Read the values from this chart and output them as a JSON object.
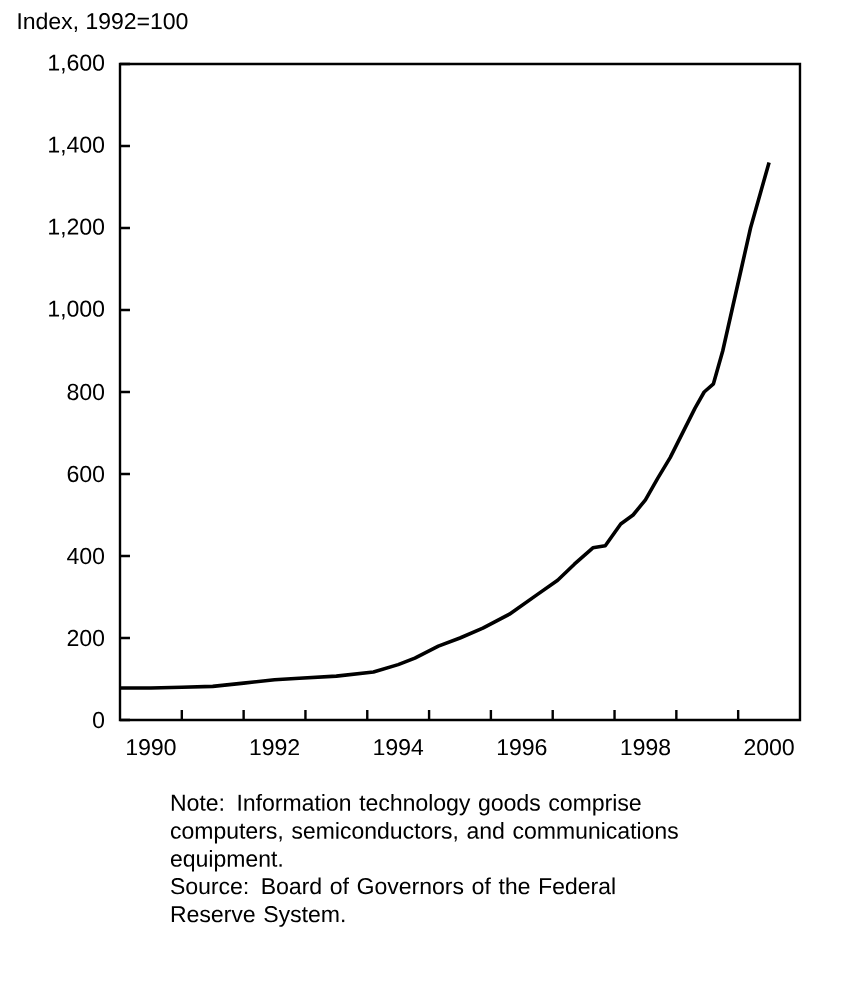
{
  "chart_data": {
    "type": "line",
    "ylabel": "Index, 1992=100",
    "x": [
      1990.0,
      1990.5,
      1991.0,
      1991.5,
      1992.0,
      1992.5,
      1992.9,
      1993.5,
      1994.1,
      1994.5,
      1994.77,
      1995.15,
      1995.5,
      1995.87,
      1996.3,
      1996.76,
      1997.08,
      1997.35,
      1997.65,
      1997.85,
      1998.1,
      1998.3,
      1998.5,
      1998.7,
      1998.9,
      1999.1,
      1999.3,
      1999.45,
      1999.6,
      1999.75,
      1999.9,
      2000.05,
      2000.2,
      2000.35,
      2000.5
    ],
    "series": [
      {
        "color": "#000000",
        "values": [
          78,
          78,
          80,
          82,
          90,
          98,
          102,
          107,
          117,
          135,
          151,
          180,
          200,
          224,
          258,
          307,
          341,
          380,
          420,
          425,
          478,
          500,
          537,
          590,
          640,
          700,
          760,
          800,
          820,
          900,
          1000,
          1100,
          1200,
          1280,
          1360
        ]
      }
    ],
    "xlim": [
      1990,
      2001
    ],
    "xticks": [
      {
        "value": 1990.5,
        "label": "1990"
      },
      {
        "value": 1992.5,
        "label": "1992"
      },
      {
        "value": 1994.5,
        "label": "1994"
      },
      {
        "value": 1996.5,
        "label": "1996"
      },
      {
        "value": 1998.5,
        "label": "1998"
      },
      {
        "value": 2000.5,
        "label": "2000"
      },
      {
        "value": 1991,
        "label": null
      },
      {
        "value": 1992,
        "label": null
      },
      {
        "value": 1993,
        "label": null
      },
      {
        "value": 1994,
        "label": null
      },
      {
        "value": 1995,
        "label": null
      },
      {
        "value": 1996,
        "label": null
      },
      {
        "value": 1997,
        "label": null
      },
      {
        "value": 1998,
        "label": null
      },
      {
        "value": 1999,
        "label": null
      },
      {
        "value": 2000,
        "label": null
      }
    ],
    "ylim": [
      0,
      1600
    ],
    "yticks": [
      0,
      200,
      400,
      600,
      800,
      {
        "value": 1000,
        "label": "1,000"
      },
      {
        "value": 1200,
        "label": "1,200"
      },
      {
        "value": 1400,
        "label": "1,400"
      },
      {
        "value": 1600,
        "label": "1,600"
      }
    ],
    "grid": false,
    "line_style": "solid",
    "annotations": [
      "Note:  Information technology goods comprise computers, semiconductors, and communications equipment.",
      "Source:  Board of Governors of the Federal Reserve System."
    ]
  }
}
